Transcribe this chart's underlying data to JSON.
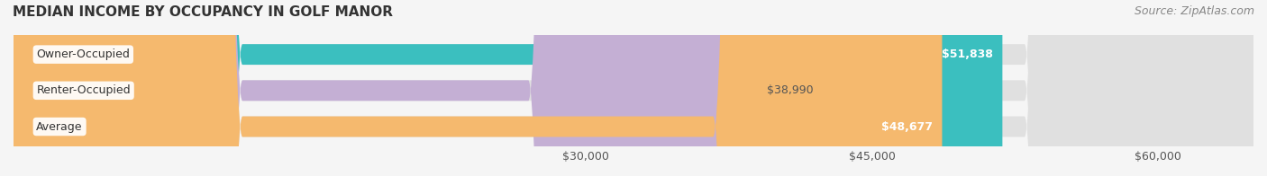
{
  "title": "MEDIAN INCOME BY OCCUPANCY IN GOLF MANOR",
  "source": "Source: ZipAtlas.com",
  "categories": [
    "Owner-Occupied",
    "Renter-Occupied",
    "Average"
  ],
  "values": [
    51838,
    38990,
    48677
  ],
  "bar_colors": [
    "#3bbfbf",
    "#c4afd4",
    "#f5b96e"
  ],
  "bar_bg_color": "#eeeeee",
  "label_values": [
    "$51,838",
    "$38,990",
    "$48,677"
  ],
  "xmin": 0,
  "xmax": 65000,
  "xticks": [
    30000,
    45000,
    60000
  ],
  "xtick_labels": [
    "$30,000",
    "$45,000",
    "$60,000"
  ],
  "title_fontsize": 11,
  "source_fontsize": 9,
  "tick_fontsize": 9,
  "bar_label_fontsize": 9,
  "cat_label_fontsize": 9,
  "fig_width": 14.06,
  "fig_height": 1.96,
  "dpi": 100,
  "background_color": "#f5f5f5"
}
